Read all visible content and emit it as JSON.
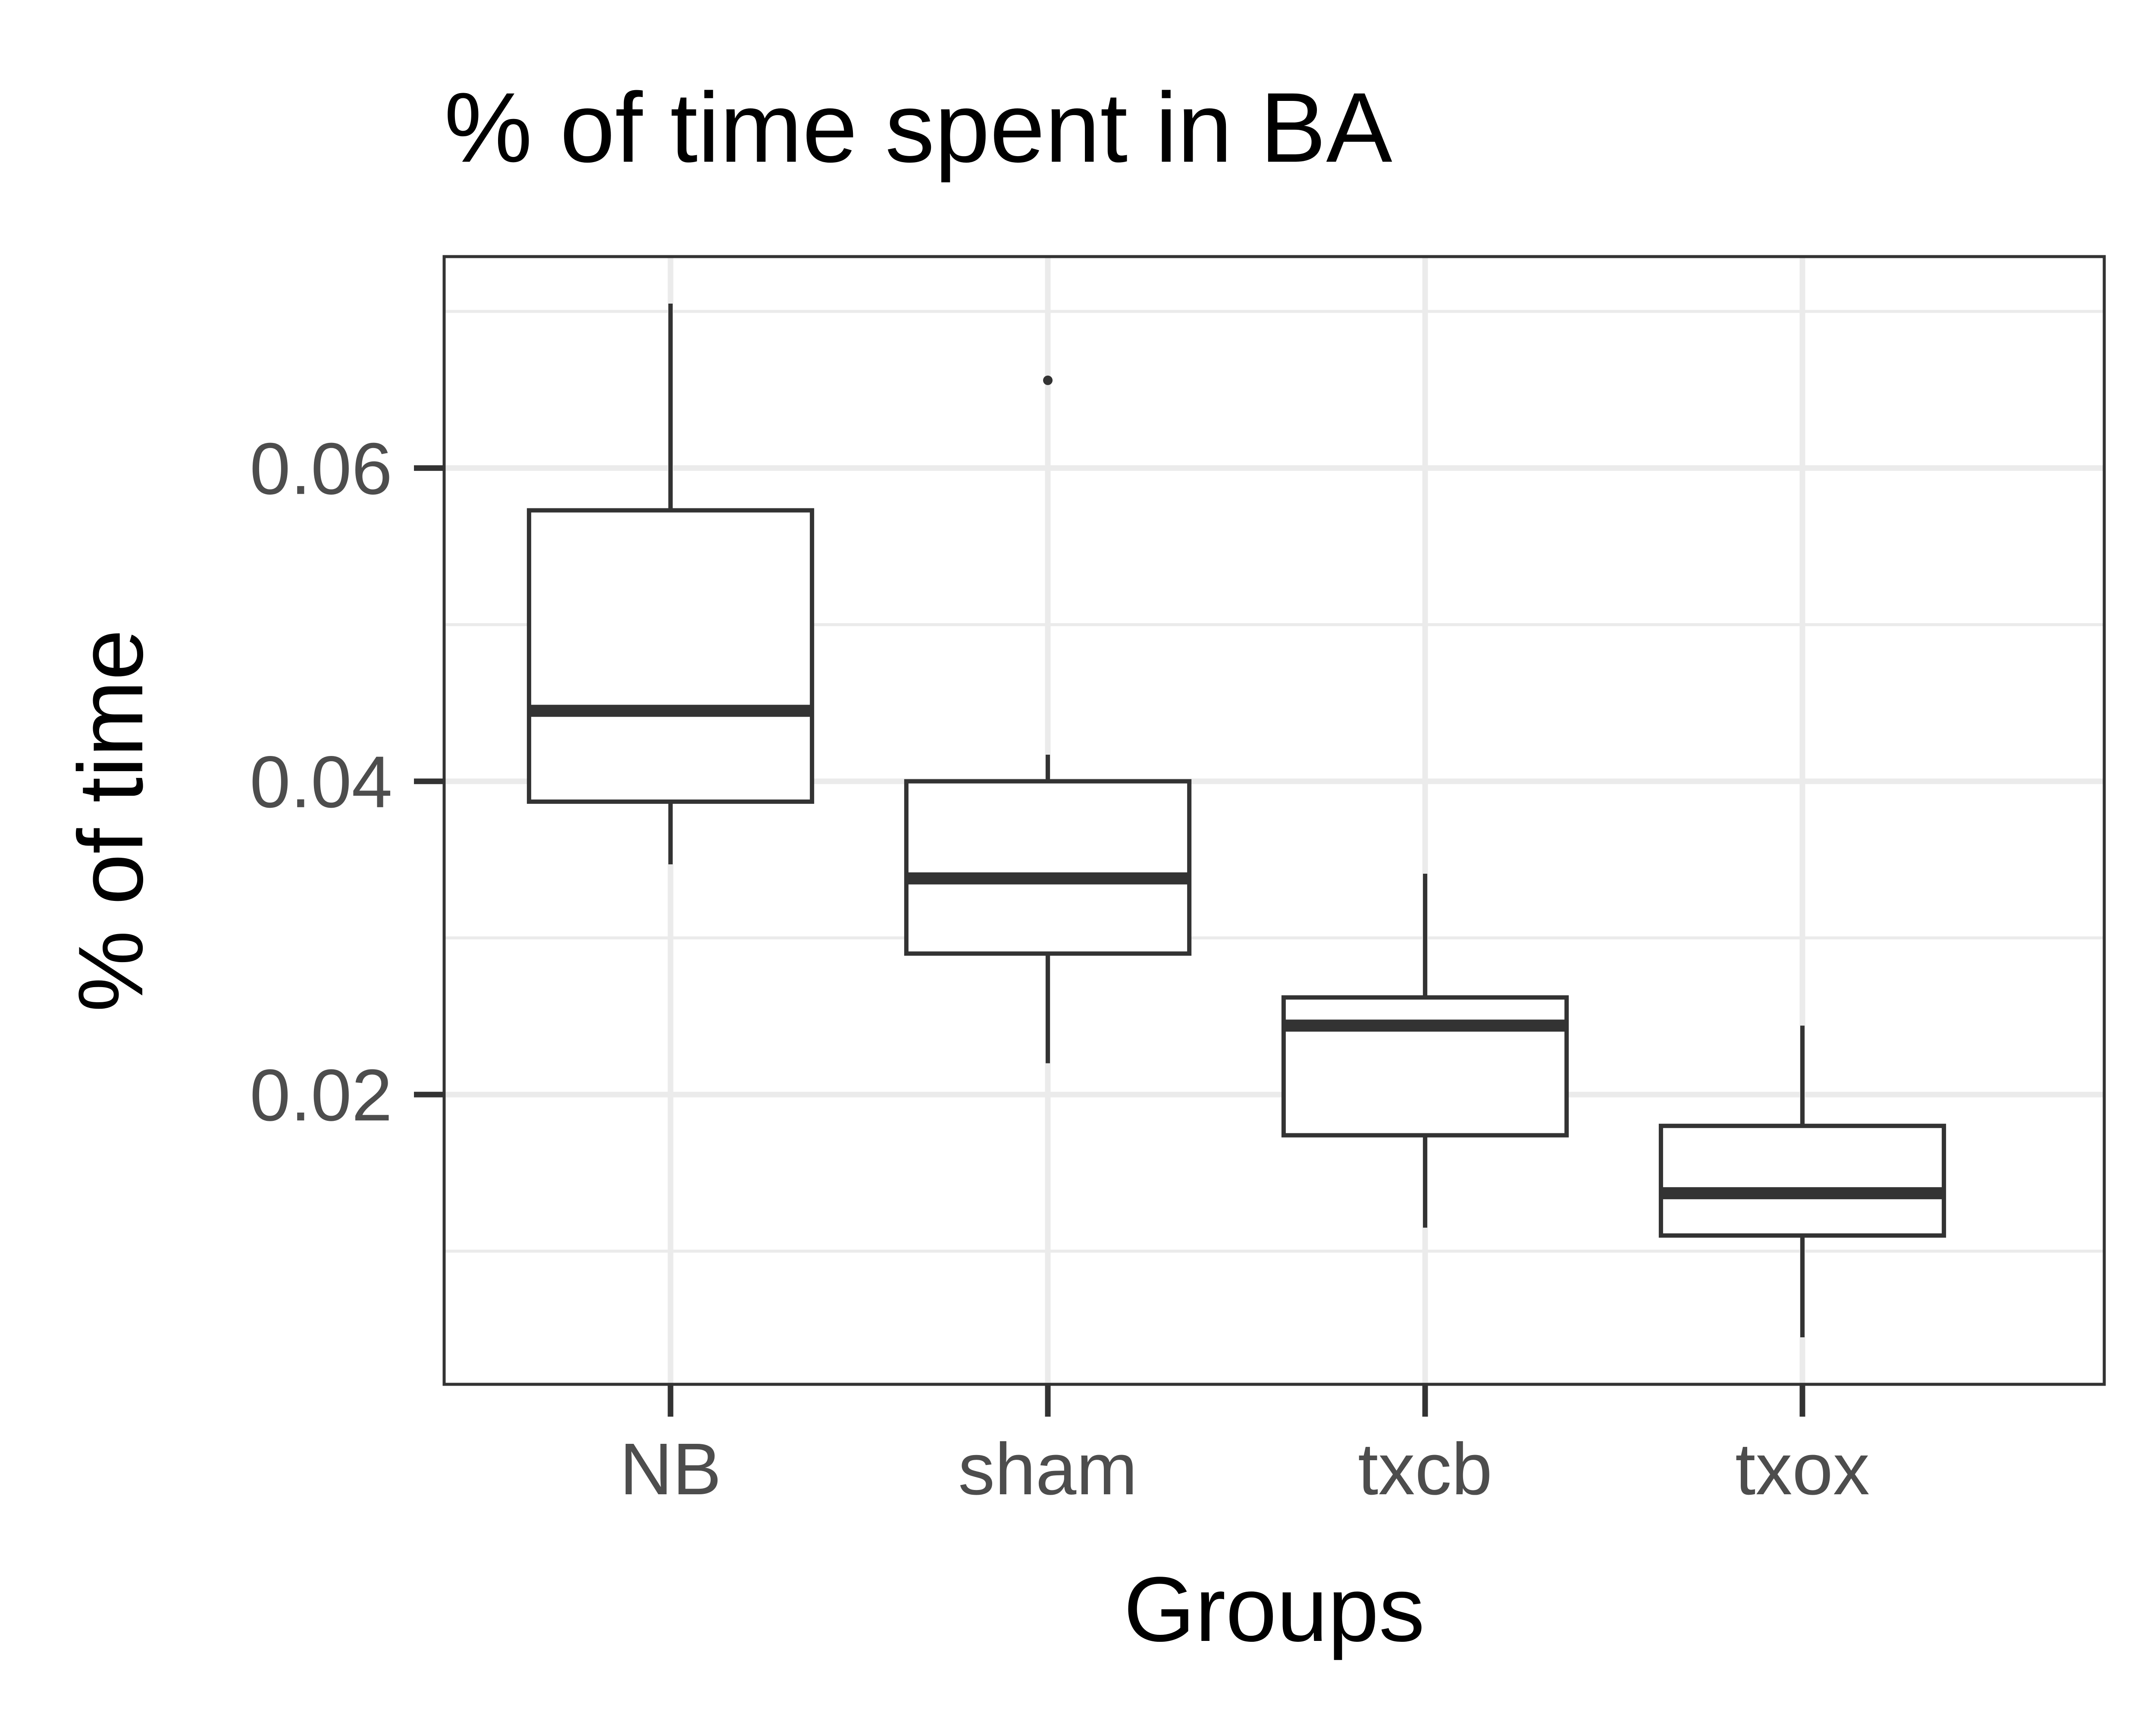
{
  "chart_data": {
    "type": "box",
    "title": "% of time spent in BA",
    "xlabel": "Groups",
    "ylabel": "% of time",
    "categories": [
      "NB",
      "sham",
      "txcb",
      "txox"
    ],
    "ylim": [
      0.0015,
      0.0735
    ],
    "yticks": [
      0.02,
      0.04,
      0.06
    ],
    "ytick_labels": [
      "0.02",
      "0.04",
      "0.06"
    ],
    "grid": true,
    "legend": "none",
    "boxes": [
      {
        "group": "NB",
        "whisker_low": 0.0347,
        "q1": 0.0387,
        "median": 0.0445,
        "q3": 0.0573,
        "whisker_high": 0.0705,
        "outliers": []
      },
      {
        "group": "sham",
        "whisker_low": 0.022,
        "q1": 0.029,
        "median": 0.0338,
        "q3": 0.04,
        "whisker_high": 0.0417,
        "outliers": [
          0.0656
        ]
      },
      {
        "group": "txcb",
        "whisker_low": 0.0115,
        "q1": 0.0174,
        "median": 0.0244,
        "q3": 0.0262,
        "whisker_high": 0.0341,
        "outliers": []
      },
      {
        "group": "txox",
        "whisker_low": 0.0045,
        "q1": 0.011,
        "median": 0.0137,
        "q3": 0.018,
        "whisker_high": 0.0244,
        "outliers": []
      }
    ],
    "colors": {
      "box_stroke": "#333333",
      "grid": "#ebebeb",
      "panel_border": "#333333",
      "tick_text": "#4d4d4d",
      "title_text": "#000000"
    }
  }
}
